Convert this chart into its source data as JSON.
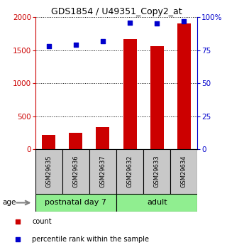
{
  "title": "GDS1854 / U49351_Copy2_at",
  "samples": [
    "GSM29635",
    "GSM29636",
    "GSM29637",
    "GSM29632",
    "GSM29633",
    "GSM29634"
  ],
  "counts": [
    220,
    255,
    340,
    1670,
    1560,
    1900
  ],
  "percentiles": [
    78,
    79,
    82,
    96,
    95,
    97
  ],
  "groups": [
    {
      "label": "postnatal day 7",
      "start": 0,
      "end": 3,
      "color": "#90EE90"
    },
    {
      "label": "adult",
      "start": 3,
      "end": 6,
      "color": "#90EE90"
    }
  ],
  "left_color": "#cc0000",
  "right_color": "#0000cc",
  "left_ylim": [
    0,
    2000
  ],
  "right_ylim": [
    0,
    100
  ],
  "left_yticks": [
    0,
    500,
    1000,
    1500,
    2000
  ],
  "right_yticks": [
    0,
    25,
    50,
    75,
    100
  ],
  "right_yticklabels": [
    "0",
    "25",
    "50",
    "75",
    "100%"
  ],
  "bg_color": "#ffffff",
  "age_label": "age",
  "legend_count": "count",
  "legend_percentile": "percentile rank within the sample",
  "bar_width": 0.5,
  "label_box_color": "#c8c8c8",
  "title_fontsize": 9,
  "tick_fontsize": 7.5,
  "sample_fontsize": 6,
  "group_fontsize": 8,
  "legend_fontsize": 7
}
